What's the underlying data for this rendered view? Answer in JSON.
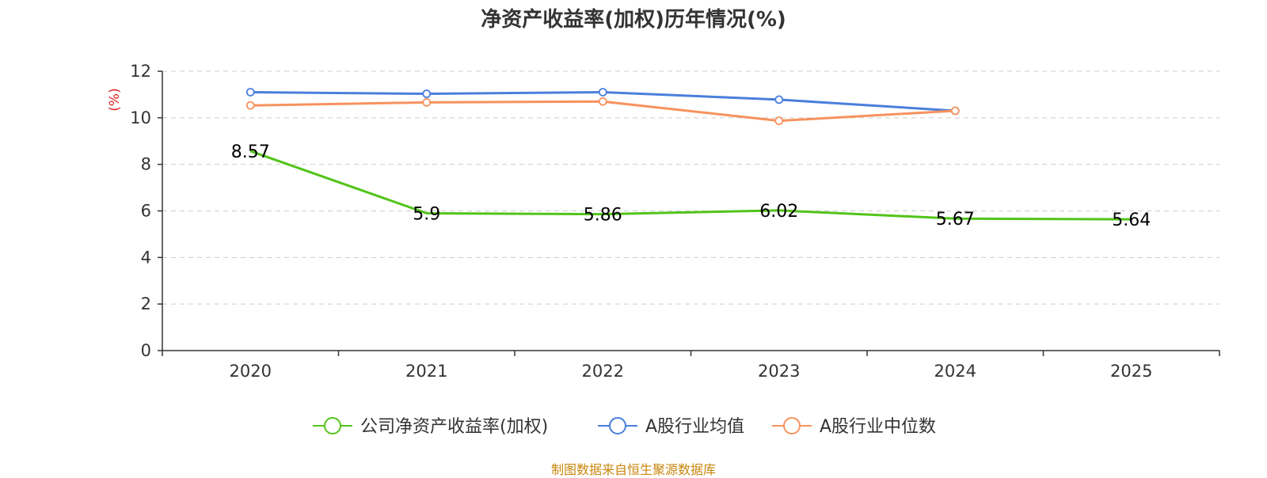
{
  "chart_data": {
    "type": "line",
    "title": "净资产收益率(加权)历年情况(%)",
    "ylabel": "(%)",
    "xlabel": "",
    "categories": [
      "2020",
      "2021",
      "2022",
      "2023",
      "2024",
      "2025"
    ],
    "ylim": [
      0,
      12
    ],
    "yticks": [
      0,
      2,
      4,
      6,
      8,
      10,
      12
    ],
    "grid": true,
    "legend_position": "bottom",
    "series": [
      {
        "name": "公司净资产收益率(加权)",
        "color": "#52c41a",
        "values": [
          8.57,
          5.9,
          5.86,
          6.02,
          5.67,
          5.64
        ],
        "labels": [
          "8.57",
          "5.9",
          "5.86",
          "6.02",
          "5.67",
          "5.64"
        ]
      },
      {
        "name": "A股行业均值",
        "color": "#4a7fdc",
        "values": [
          11.1,
          11.03,
          11.1,
          10.78,
          10.3,
          null
        ]
      },
      {
        "name": "A股行业中位数",
        "color": "#f7925d",
        "values": [
          10.53,
          10.66,
          10.7,
          9.87,
          10.3,
          null
        ]
      }
    ]
  },
  "source": "制图数据来自恒生聚源数据库"
}
